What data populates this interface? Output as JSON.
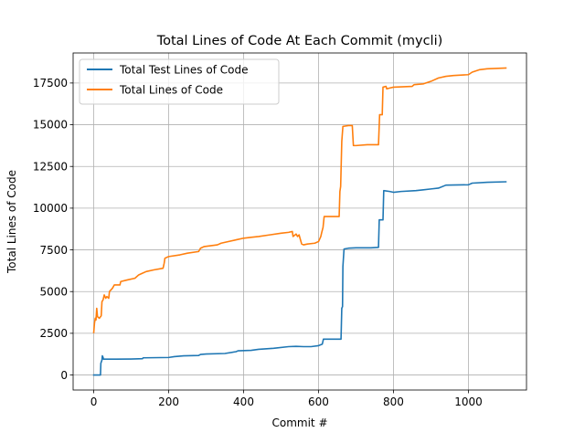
{
  "chart_data": {
    "type": "line",
    "title": "Total Lines of Code At Each Commit (mycli)",
    "xlabel": "Commit #",
    "ylabel": "Total Lines of Code",
    "xlim": [
      -55,
      1155
    ],
    "ylim": [
      -900,
      19300
    ],
    "xticks": [
      0,
      200,
      400,
      600,
      800,
      1000
    ],
    "yticks": [
      0,
      2500,
      5000,
      7500,
      10000,
      12500,
      15000,
      17500
    ],
    "grid": true,
    "legend": "top-left",
    "series": [
      {
        "name": "Total Test Lines of Code",
        "color": "#1f77b4",
        "points": [
          [
            0,
            0
          ],
          [
            18,
            0
          ],
          [
            19,
            700
          ],
          [
            22,
            900
          ],
          [
            23,
            1150
          ],
          [
            25,
            1050
          ],
          [
            26,
            950
          ],
          [
            60,
            950
          ],
          [
            100,
            960
          ],
          [
            130,
            980
          ],
          [
            132,
            1030
          ],
          [
            200,
            1050
          ],
          [
            215,
            1100
          ],
          [
            240,
            1150
          ],
          [
            280,
            1170
          ],
          [
            285,
            1230
          ],
          [
            300,
            1260
          ],
          [
            350,
            1290
          ],
          [
            380,
            1400
          ],
          [
            385,
            1450
          ],
          [
            420,
            1480
          ],
          [
            440,
            1540
          ],
          [
            480,
            1600
          ],
          [
            520,
            1700
          ],
          [
            540,
            1720
          ],
          [
            560,
            1700
          ],
          [
            580,
            1700
          ],
          [
            600,
            1760
          ],
          [
            610,
            1850
          ],
          [
            613,
            2150
          ],
          [
            660,
            2150
          ],
          [
            662,
            4000
          ],
          [
            664,
            4100
          ],
          [
            665,
            6500
          ],
          [
            668,
            7550
          ],
          [
            680,
            7600
          ],
          [
            700,
            7620
          ],
          [
            740,
            7620
          ],
          [
            760,
            7650
          ],
          [
            762,
            9300
          ],
          [
            772,
            9300
          ],
          [
            774,
            11050
          ],
          [
            790,
            11000
          ],
          [
            800,
            10950
          ],
          [
            820,
            11000
          ],
          [
            860,
            11050
          ],
          [
            880,
            11100
          ],
          [
            900,
            11150
          ],
          [
            920,
            11200
          ],
          [
            940,
            11380
          ],
          [
            1000,
            11400
          ],
          [
            1010,
            11500
          ],
          [
            1050,
            11550
          ],
          [
            1100,
            11580
          ]
        ]
      },
      {
        "name": "Total Lines of Code",
        "color": "#ff7f0e",
        "points": [
          [
            0,
            2550
          ],
          [
            2,
            3100
          ],
          [
            4,
            3400
          ],
          [
            6,
            3300
          ],
          [
            8,
            4000
          ],
          [
            10,
            3500
          ],
          [
            15,
            3400
          ],
          [
            20,
            3550
          ],
          [
            22,
            4400
          ],
          [
            25,
            4500
          ],
          [
            28,
            4800
          ],
          [
            32,
            4600
          ],
          [
            35,
            4700
          ],
          [
            40,
            4600
          ],
          [
            42,
            5000
          ],
          [
            50,
            5200
          ],
          [
            55,
            5400
          ],
          [
            60,
            5400
          ],
          [
            70,
            5400
          ],
          [
            72,
            5600
          ],
          [
            90,
            5700
          ],
          [
            110,
            5800
          ],
          [
            120,
            6000
          ],
          [
            130,
            6100
          ],
          [
            140,
            6200
          ],
          [
            160,
            6300
          ],
          [
            185,
            6400
          ],
          [
            188,
            6700
          ],
          [
            190,
            7000
          ],
          [
            200,
            7100
          ],
          [
            230,
            7200
          ],
          [
            250,
            7300
          ],
          [
            280,
            7400
          ],
          [
            285,
            7600
          ],
          [
            295,
            7700
          ],
          [
            330,
            7800
          ],
          [
            340,
            7900
          ],
          [
            380,
            8100
          ],
          [
            400,
            8200
          ],
          [
            420,
            8250
          ],
          [
            440,
            8300
          ],
          [
            470,
            8400
          ],
          [
            500,
            8500
          ],
          [
            520,
            8550
          ],
          [
            530,
            8600
          ],
          [
            532,
            8300
          ],
          [
            540,
            8450
          ],
          [
            544,
            8300
          ],
          [
            548,
            8400
          ],
          [
            555,
            7850
          ],
          [
            560,
            7800
          ],
          [
            570,
            7850
          ],
          [
            590,
            7900
          ],
          [
            600,
            8000
          ],
          [
            606,
            8300
          ],
          [
            608,
            8500
          ],
          [
            612,
            8850
          ],
          [
            615,
            9500
          ],
          [
            655,
            9500
          ],
          [
            657,
            11000
          ],
          [
            659,
            11300
          ],
          [
            662,
            14000
          ],
          [
            665,
            14900
          ],
          [
            680,
            14950
          ],
          [
            690,
            14950
          ],
          [
            693,
            13750
          ],
          [
            700,
            13750
          ],
          [
            730,
            13800
          ],
          [
            760,
            13800
          ],
          [
            763,
            15600
          ],
          [
            770,
            15600
          ],
          [
            772,
            17250
          ],
          [
            780,
            17300
          ],
          [
            782,
            17150
          ],
          [
            790,
            17200
          ],
          [
            800,
            17250
          ],
          [
            850,
            17300
          ],
          [
            855,
            17400
          ],
          [
            880,
            17450
          ],
          [
            900,
            17600
          ],
          [
            920,
            17800
          ],
          [
            940,
            17900
          ],
          [
            960,
            17950
          ],
          [
            1000,
            18000
          ],
          [
            1010,
            18150
          ],
          [
            1030,
            18300
          ],
          [
            1050,
            18350
          ],
          [
            1100,
            18400
          ]
        ]
      }
    ]
  }
}
